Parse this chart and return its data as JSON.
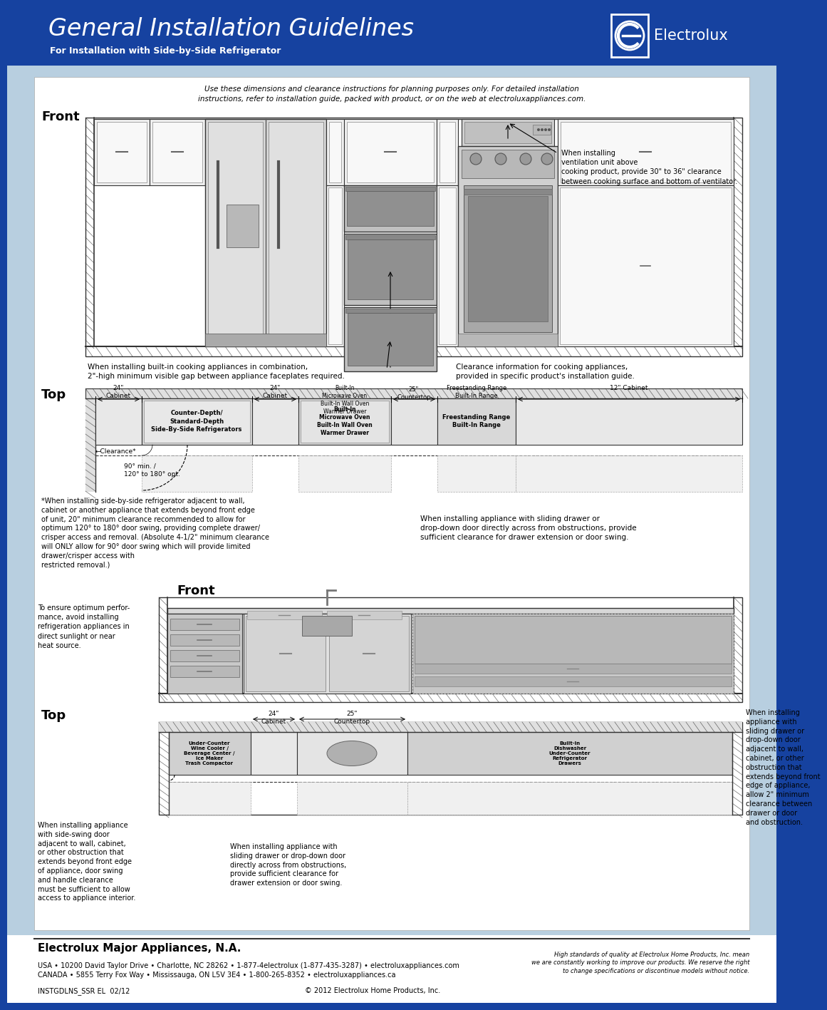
{
  "header_bg_color": "#1642a0",
  "content_bg_color": "#b8cfe0",
  "inner_bg_color": "#ffffff",
  "header_title": "General Installation Guidelines",
  "header_subtitle": "For Installation with Side-by-Side Refrigerator",
  "header_title_color": "#ffffff",
  "header_subtitle_color": "#ffffff",
  "electrolux_text": "Electrolux",
  "disclaimer_text": "Use these dimensions and clearance instructions for planning purposes only. For detailed installation\ninstructions, refer to installation guide, packed with product, or on the web at electroluxappliances.com.",
  "front_label": "Front",
  "top_label": "Top",
  "front_label2": "Front",
  "top_label2": "Top",
  "section1_note_left": "When installing built-in cooking appliances in combination,\n2\"-high minimum visible gap between appliance faceplates required.",
  "section1_note_right": "Clearance information for cooking appliances,\nprovided in specific product's installation guide.",
  "section1_ventilation_note": "When installing\nventilation unit above\ncooking product, provide 30\" to 36\" clearance\nbetween cooking surface and bottom of ventilator.",
  "top_footnote": "*When installing side-by-side refrigerator adjacent to wall,\ncabinet or another appliance that extends beyond front edge\nof unit, 20\" minimum clearance recommended to allow for\noptimum 120° to 180° door swing, providing complete drawer/\ncrisper access and removal. (Absolute 4-1/2\" minimum clearance\nwill ONLY allow for 90° door swing which will provide limited\ndrawer/crisper access with\nrestricted removal.)",
  "top_angle_label": "90° min. /\n120° to 180° opt.",
  "section2_note_top": "When installing appliance with sliding drawer or\ndrop-down door directly across from obstructions, provide\nsufficient clearance for drawer extension or door swing.",
  "section2_note_left": "To ensure optimum perfor-\nmance, avoid installing\nrefrigeration appliances in\ndirect sunlight or near\nheat source.",
  "section3_note_left": "When installing appliance\nwith side-swing door\nadjacent to wall, cabinet,\nor other obstruction that\nextends beyond front edge\nof appliance, door swing\nand handle clearance\nmust be sufficient to allow\naccess to appliance interior.",
  "section3_note_center": "When installing appliance with\nsliding drawer or drop-down door\ndirectly across from obstructions,\nprovide sufficient clearance for\ndrawer extension or door swing.",
  "section3_note_right": "When installing\nappliance with\nsliding drawer or\ndrop-down door\nadjacent to wall,\ncabinet, or other\nobstruction that\nextends beyond front\nedge of appliance,\nallow 2\" minimum\nclearance between\ndrawer or door\nand obstruction.",
  "footer_company": "Electrolux Major Appliances, N.A.",
  "footer_usa": "USA • 10200 David Taylor Drive • Charlotte, NC 28262 • 1-877-4electrolux (1-877-435-3287) • electroluxappliances.com",
  "footer_canada": "CANADA • 5855 Terry Fox Way • Mississauga, ON L5V 3E4 • 1-800-265-8352 • electroluxappliances.ca",
  "footer_model": "INSTGDLNS_SSR EL  02/12",
  "footer_copyright": "© 2012 Electrolux Home Products, Inc.",
  "footer_quality": "High standards of quality at Electrolux Home Products, Inc. mean\nwe are constantly working to improve our products. We reserve the right\nto change specifications or discontinue models without notice.",
  "fig_width": 10.8,
  "fig_height": 13.97
}
